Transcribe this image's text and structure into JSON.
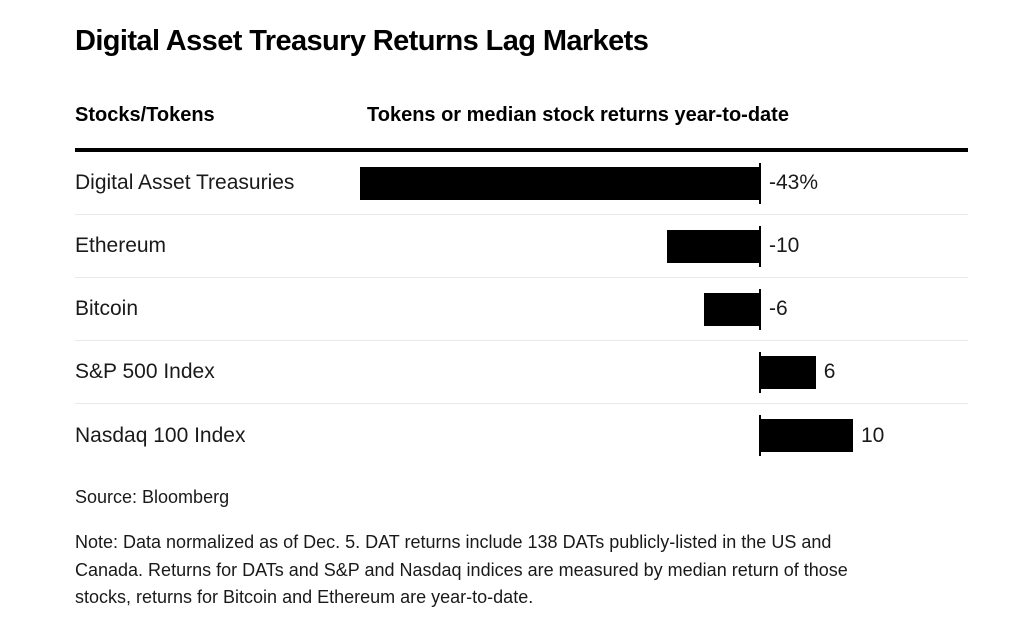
{
  "title": "Digital Asset Treasury Returns Lag Markets",
  "table": {
    "header_left": "Stocks/Tokens",
    "header_right": "Tokens or median stock returns year-to-date"
  },
  "chart_data": {
    "type": "bar",
    "orientation": "horizontal",
    "title": "Digital Asset Treasury Returns Lag Markets",
    "xlabel": "Tokens or median stock returns year-to-date",
    "ylabel": "Stocks/Tokens",
    "categories": [
      "Digital Asset Treasuries",
      "Ethereum",
      "Bitcoin",
      "S&P 500 Index",
      "Nasdaq 100 Index"
    ],
    "values": [
      -43,
      -10,
      -6,
      6,
      10
    ],
    "value_labels": [
      "-43%",
      "-10",
      "-6",
      "6",
      "10"
    ],
    "unit": "percent",
    "xlim": [
      -43,
      22
    ],
    "grid": "light horizontal row separators, zero-axis tick per bar",
    "legend": "none",
    "bar_color": "#000000"
  },
  "footer": {
    "source": "Source: Bloomberg",
    "note_lines": [
      "Note: Data normalized as of Dec. 5. DAT returns include 138 DATs publicly-listed in the US and",
      "Canada. Returns for DATs and S&P and Nasdaq indices are measured by median return of those",
      "stocks, returns for Bitcoin and Ethereum are year-to-date."
    ]
  },
  "colors": {
    "background": "#ffffff",
    "bar": "#000000",
    "text": "#1a1a1a",
    "header_rule": "#000000",
    "row_separator": "#e9e9e9"
  }
}
